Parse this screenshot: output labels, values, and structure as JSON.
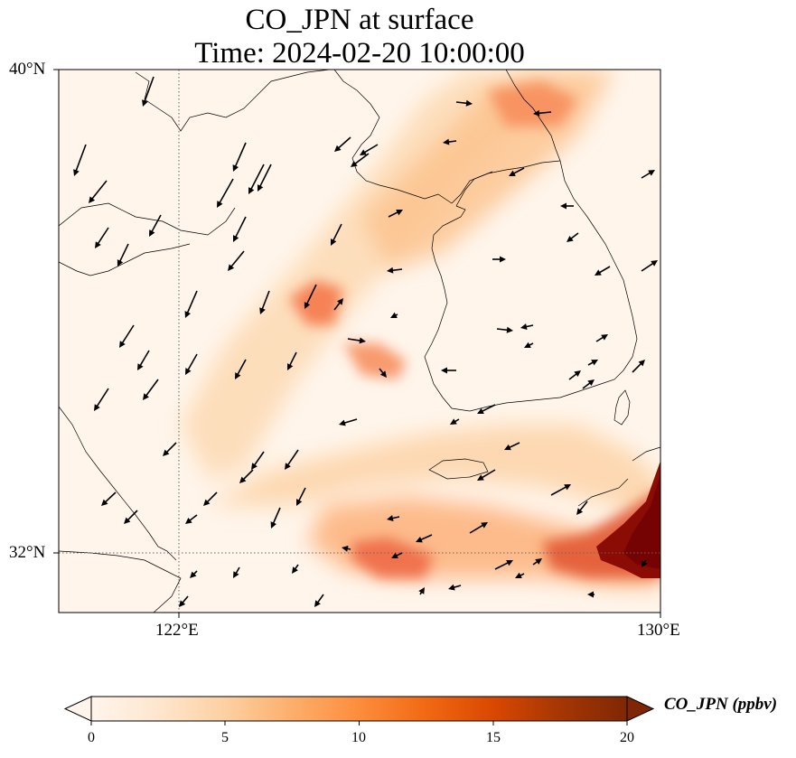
{
  "title": {
    "line1": "CO_JPN at surface",
    "line2": "Time: 2024-02-20 10:00:00"
  },
  "axes": {
    "lat_ticks": [
      "40°N",
      "32°N"
    ],
    "lon_ticks": [
      "122°E",
      "130°E"
    ],
    "lon_range": [
      120,
      130
    ],
    "lat_range": [
      31,
      40
    ],
    "gridlines": "dotted at 122°E and 32°N"
  },
  "colorbar": {
    "label": "CO_JPN (ppbv)",
    "ticks": [
      "0",
      "5",
      "10",
      "15",
      "20"
    ],
    "range": [
      0,
      20
    ],
    "colormap": [
      "#fff5eb",
      "#fee6ce",
      "#fdd0a2",
      "#fdae6b",
      "#fd8d3c",
      "#f16913",
      "#d94801",
      "#a63603",
      "#7f2704"
    ],
    "extend": "both"
  },
  "map_features": {
    "background_color": "#fff5eb",
    "coastline_color": "#000000",
    "arrow_color": "#000000",
    "plumes": [
      {
        "name": "yellow-sea-to-korea-band",
        "peak_value": 8
      },
      {
        "name": "shandong-offshore-hotspot",
        "peak_value": 11
      },
      {
        "name": "central-yellow-sea-hotspot",
        "peak_value": 10
      },
      {
        "name": "north-korea-band",
        "peak_value": 9
      },
      {
        "name": "east-china-sea-band",
        "peak_value": 12
      },
      {
        "name": "kyushu-hotspot",
        "peak_value": 20
      }
    ],
    "wind_arrows": "black arrows showing near-surface wind direction"
  }
}
